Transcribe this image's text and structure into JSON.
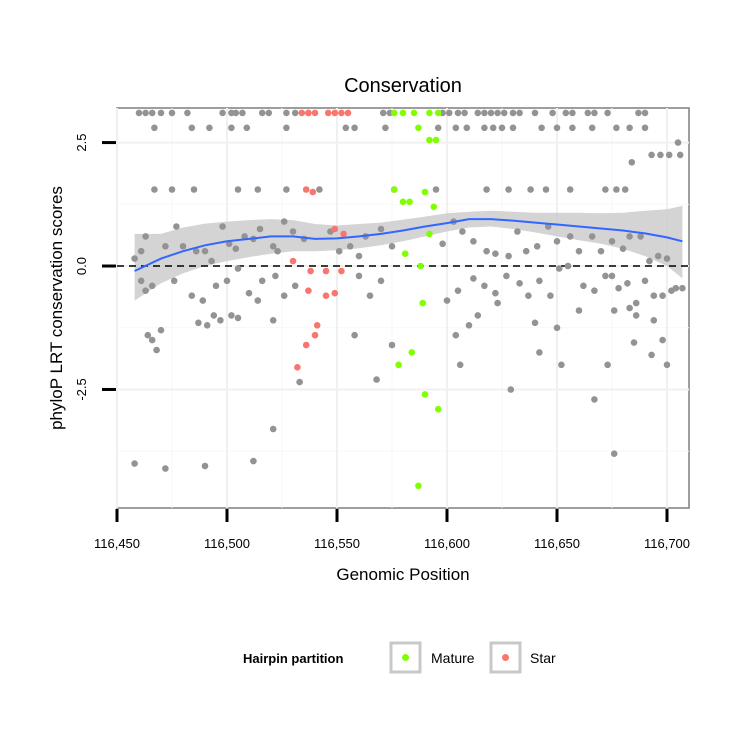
{
  "chart_data": {
    "type": "scatter",
    "title": "Conservation",
    "xlabel": "Genomic Position",
    "ylabel": "phyloP LRT conservation scores",
    "xlim": [
      116450,
      116710
    ],
    "ylim": [
      -4.9,
      3.2
    ],
    "x_ticks": [
      116450,
      116500,
      116550,
      116600,
      116650,
      116700
    ],
    "x_tick_labels": [
      "116,450",
      "116,500",
      "116,550",
      "116,600",
      "116,650",
      "116,700"
    ],
    "y_ticks": [
      -2.5,
      0.0,
      2.5
    ],
    "y_tick_labels": [
      "-2.5",
      "0.0",
      "2.5"
    ],
    "reference_line_y": 0,
    "grid": true,
    "legend": {
      "title": "Hairpin partition",
      "position": "bottom",
      "entries": [
        {
          "label": "Mature",
          "color": "#7fff00"
        },
        {
          "label": "Star",
          "color": "#f8766d"
        }
      ]
    },
    "colors": {
      "other": "#939393",
      "mature": "#7fff00",
      "star": "#f8766d",
      "smooth": "#3366ff",
      "ribbon": "#cccccc"
    },
    "smooth": {
      "x": [
        116458,
        116470,
        116480,
        116490,
        116500,
        116510,
        116520,
        116530,
        116540,
        116550,
        116560,
        116570,
        116580,
        116590,
        116600,
        116610,
        116620,
        116630,
        116640,
        116650,
        116660,
        116670,
        116680,
        116690,
        116700,
        116707
      ],
      "y": [
        -0.1,
        0.15,
        0.3,
        0.42,
        0.5,
        0.55,
        0.6,
        0.6,
        0.55,
        0.56,
        0.6,
        0.65,
        0.72,
        0.8,
        0.87,
        0.95,
        0.95,
        0.92,
        0.88,
        0.84,
        0.8,
        0.76,
        0.72,
        0.66,
        0.58,
        0.5
      ],
      "lo": [
        -0.7,
        -0.35,
        -0.15,
        0.0,
        0.1,
        0.18,
        0.25,
        0.3,
        0.3,
        0.32,
        0.36,
        0.42,
        0.5,
        0.6,
        0.7,
        0.78,
        0.8,
        0.75,
        0.68,
        0.6,
        0.52,
        0.45,
        0.35,
        0.2,
        0.0,
        -0.25
      ],
      "hi": [
        0.65,
        0.65,
        0.78,
        0.86,
        0.9,
        0.93,
        0.95,
        0.93,
        0.85,
        0.82,
        0.85,
        0.88,
        0.94,
        1.0,
        1.07,
        1.1,
        1.12,
        1.1,
        1.08,
        1.08,
        1.08,
        1.07,
        1.08,
        1.12,
        1.15,
        1.22
      ]
    },
    "series": [
      {
        "name": "Mature",
        "color": "#7fff00",
        "points": [
          [
            116576,
            3.1
          ],
          [
            116580,
            3.1
          ],
          [
            116585,
            3.1
          ],
          [
            116592,
            3.1
          ],
          [
            116596,
            3.1
          ],
          [
            116587,
            2.8
          ],
          [
            116592,
            2.55
          ],
          [
            116595,
            2.55
          ],
          [
            116576,
            1.55
          ],
          [
            116580,
            1.3
          ],
          [
            116583,
            1.3
          ],
          [
            116590,
            1.5
          ],
          [
            116594,
            1.2
          ],
          [
            116592,
            0.65
          ],
          [
            116581,
            0.25
          ],
          [
            116588,
            0.0
          ],
          [
            116589,
            -0.75
          ],
          [
            116584,
            -1.75
          ],
          [
            116578,
            -2.0
          ],
          [
            116590,
            -2.6
          ],
          [
            116596,
            -2.9
          ],
          [
            116587,
            -4.45
          ]
        ]
      },
      {
        "name": "Star",
        "color": "#f8766d",
        "points": [
          [
            116534,
            3.1
          ],
          [
            116537,
            3.1
          ],
          [
            116540,
            3.1
          ],
          [
            116546,
            3.1
          ],
          [
            116549,
            3.1
          ],
          [
            116552,
            3.1
          ],
          [
            116555,
            3.1
          ],
          [
            116536,
            1.55
          ],
          [
            116539,
            1.5
          ],
          [
            116549,
            0.75
          ],
          [
            116553,
            0.65
          ],
          [
            116530,
            0.1
          ],
          [
            116538,
            -0.1
          ],
          [
            116545,
            -0.1
          ],
          [
            116552,
            -0.1
          ],
          [
            116537,
            -0.5
          ],
          [
            116545,
            -0.6
          ],
          [
            116549,
            -0.55
          ],
          [
            116541,
            -1.2
          ],
          [
            116540,
            -1.4
          ],
          [
            116536,
            -1.6
          ],
          [
            116532,
            -2.05
          ]
        ]
      },
      {
        "name": "",
        "color": "#939393",
        "points": [
          [
            116460,
            3.1
          ],
          [
            116463,
            3.1
          ],
          [
            116466,
            3.1
          ],
          [
            116470,
            3.1
          ],
          [
            116475,
            3.1
          ],
          [
            116482,
            3.1
          ],
          [
            116498,
            3.1
          ],
          [
            116502,
            3.1
          ],
          [
            116504,
            3.1
          ],
          [
            116507,
            3.1
          ],
          [
            116516,
            3.1
          ],
          [
            116519,
            3.1
          ],
          [
            116527,
            3.1
          ],
          [
            116531,
            3.1
          ],
          [
            116537,
            3.1
          ],
          [
            116571,
            3.1
          ],
          [
            116574,
            3.1
          ],
          [
            116598,
            3.1
          ],
          [
            116601,
            3.1
          ],
          [
            116605,
            3.1
          ],
          [
            116608,
            3.1
          ],
          [
            116614,
            3.1
          ],
          [
            116617,
            3.1
          ],
          [
            116620,
            3.1
          ],
          [
            116623,
            3.1
          ],
          [
            116626,
            3.1
          ],
          [
            116630,
            3.1
          ],
          [
            116633,
            3.1
          ],
          [
            116640,
            3.1
          ],
          [
            116648,
            3.1
          ],
          [
            116654,
            3.1
          ],
          [
            116657,
            3.1
          ],
          [
            116664,
            3.1
          ],
          [
            116667,
            3.1
          ],
          [
            116673,
            3.1
          ],
          [
            116687,
            3.1
          ],
          [
            116690,
            3.1
          ],
          [
            116467,
            2.8
          ],
          [
            116484,
            2.8
          ],
          [
            116492,
            2.8
          ],
          [
            116502,
            2.8
          ],
          [
            116509,
            2.8
          ],
          [
            116527,
            2.8
          ],
          [
            116554,
            2.8
          ],
          [
            116558,
            2.8
          ],
          [
            116572,
            2.8
          ],
          [
            116596,
            2.8
          ],
          [
            116604,
            2.8
          ],
          [
            116609,
            2.8
          ],
          [
            116617,
            2.8
          ],
          [
            116621,
            2.8
          ],
          [
            116625,
            2.8
          ],
          [
            116630,
            2.8
          ],
          [
            116643,
            2.8
          ],
          [
            116650,
            2.8
          ],
          [
            116657,
            2.8
          ],
          [
            116666,
            2.8
          ],
          [
            116677,
            2.8
          ],
          [
            116683,
            2.8
          ],
          [
            116690,
            2.8
          ],
          [
            116693,
            2.25
          ],
          [
            116697,
            2.25
          ],
          [
            116701,
            2.25
          ],
          [
            116706,
            2.25
          ],
          [
            116705,
            2.5
          ],
          [
            116684,
            2.1
          ],
          [
            116467,
            1.55
          ],
          [
            116475,
            1.55
          ],
          [
            116485,
            1.55
          ],
          [
            116505,
            1.55
          ],
          [
            116514,
            1.55
          ],
          [
            116527,
            1.55
          ],
          [
            116542,
            1.55
          ],
          [
            116576,
            1.55
          ],
          [
            116595,
            1.55
          ],
          [
            116618,
            1.55
          ],
          [
            116628,
            1.55
          ],
          [
            116638,
            1.55
          ],
          [
            116645,
            1.55
          ],
          [
            116656,
            1.55
          ],
          [
            116672,
            1.55
          ],
          [
            116677,
            1.55
          ],
          [
            116681,
            1.55
          ],
          [
            116458,
            0.15
          ],
          [
            116461,
            0.3
          ],
          [
            116463,
            0.6
          ],
          [
            116472,
            0.4
          ],
          [
            116477,
            0.8
          ],
          [
            116480,
            0.4
          ],
          [
            116486,
            0.3
          ],
          [
            116490,
            0.3
          ],
          [
            116493,
            0.1
          ],
          [
            116498,
            0.8
          ],
          [
            116501,
            0.45
          ],
          [
            116504,
            0.35
          ],
          [
            116508,
            0.6
          ],
          [
            116512,
            0.55
          ],
          [
            116515,
            0.75
          ],
          [
            116521,
            0.4
          ],
          [
            116523,
            0.3
          ],
          [
            116526,
            0.9
          ],
          [
            116530,
            0.7
          ],
          [
            116535,
            0.55
          ],
          [
            116547,
            0.7
          ],
          [
            116551,
            0.3
          ],
          [
            116556,
            0.4
          ],
          [
            116560,
            0.2
          ],
          [
            116563,
            0.6
          ],
          [
            116570,
            0.75
          ],
          [
            116575,
            0.4
          ],
          [
            116598,
            0.45
          ],
          [
            116603,
            0.9
          ],
          [
            116607,
            0.7
          ],
          [
            116612,
            0.5
          ],
          [
            116618,
            0.3
          ],
          [
            116622,
            0.25
          ],
          [
            116628,
            0.2
          ],
          [
            116632,
            0.7
          ],
          [
            116636,
            0.3
          ],
          [
            116641,
            0.4
          ],
          [
            116646,
            0.8
          ],
          [
            116650,
            0.5
          ],
          [
            116656,
            0.6
          ],
          [
            116660,
            0.3
          ],
          [
            116666,
            0.6
          ],
          [
            116670,
            0.3
          ],
          [
            116675,
            0.5
          ],
          [
            116680,
            0.35
          ],
          [
            116683,
            0.6
          ],
          [
            116688,
            0.6
          ],
          [
            116692,
            0.1
          ],
          [
            116696,
            0.2
          ],
          [
            116700,
            0.15
          ],
          [
            116461,
            -0.3
          ],
          [
            116463,
            -0.5
          ],
          [
            116466,
            -0.4
          ],
          [
            116476,
            -0.3
          ],
          [
            116484,
            -0.6
          ],
          [
            116489,
            -0.7
          ],
          [
            116495,
            -0.4
          ],
          [
            116500,
            -0.3
          ],
          [
            116505,
            -0.05
          ],
          [
            116510,
            -0.55
          ],
          [
            116514,
            -0.7
          ],
          [
            116516,
            -0.3
          ],
          [
            116522,
            -0.2
          ],
          [
            116526,
            -0.6
          ],
          [
            116531,
            -0.4
          ],
          [
            116560,
            -0.2
          ],
          [
            116565,
            -0.6
          ],
          [
            116570,
            -0.3
          ],
          [
            116600,
            -0.7
          ],
          [
            116605,
            -0.5
          ],
          [
            116612,
            -0.25
          ],
          [
            116617,
            -0.4
          ],
          [
            116622,
            -0.55
          ],
          [
            116627,
            -0.2
          ],
          [
            116633,
            -0.35
          ],
          [
            116637,
            -0.6
          ],
          [
            116642,
            -0.3
          ],
          [
            116647,
            -0.6
          ],
          [
            116651,
            -0.05
          ],
          [
            116655,
            0.0
          ],
          [
            116662,
            -0.4
          ],
          [
            116667,
            -0.5
          ],
          [
            116672,
            -0.2
          ],
          [
            116675,
            -0.2
          ],
          [
            116678,
            -0.45
          ],
          [
            116682,
            -0.35
          ],
          [
            116686,
            -0.75
          ],
          [
            116690,
            -0.3
          ],
          [
            116694,
            -0.6
          ],
          [
            116698,
            -0.6
          ],
          [
            116702,
            -0.5
          ],
          [
            116704,
            -0.45
          ],
          [
            116707,
            -0.45
          ],
          [
            116464,
            -1.4
          ],
          [
            116466,
            -1.5
          ],
          [
            116468,
            -1.7
          ],
          [
            116470,
            -1.3
          ],
          [
            116487,
            -1.15
          ],
          [
            116491,
            -1.2
          ],
          [
            116494,
            -1.0
          ],
          [
            116497,
            -1.1
          ],
          [
            116502,
            -1.0
          ],
          [
            116505,
            -1.05
          ],
          [
            116521,
            -1.1
          ],
          [
            116558,
            -1.4
          ],
          [
            116575,
            -1.6
          ],
          [
            116604,
            -1.4
          ],
          [
            116610,
            -1.2
          ],
          [
            116614,
            -1.0
          ],
          [
            116623,
            -0.75
          ],
          [
            116640,
            -1.15
          ],
          [
            116650,
            -1.25
          ],
          [
            116660,
            -0.9
          ],
          [
            116676,
            -0.9
          ],
          [
            116683,
            -0.85
          ],
          [
            116686,
            -1.0
          ],
          [
            116694,
            -1.1
          ],
          [
            116698,
            -1.5
          ],
          [
            116642,
            -1.75
          ],
          [
            116685,
            -1.55
          ],
          [
            116458,
            -4.0
          ],
          [
            116472,
            -4.1
          ],
          [
            116490,
            -4.05
          ],
          [
            116512,
            -3.95
          ],
          [
            116521,
            -3.3
          ],
          [
            116533,
            -2.35
          ],
          [
            116568,
            -2.3
          ],
          [
            116606,
            -2.0
          ],
          [
            116629,
            -2.5
          ],
          [
            116652,
            -2.0
          ],
          [
            116667,
            -2.7
          ],
          [
            116673,
            -2.0
          ],
          [
            116676,
            -3.8
          ],
          [
            116693,
            -1.8
          ],
          [
            116700,
            -2.0
          ]
        ]
      }
    ]
  }
}
